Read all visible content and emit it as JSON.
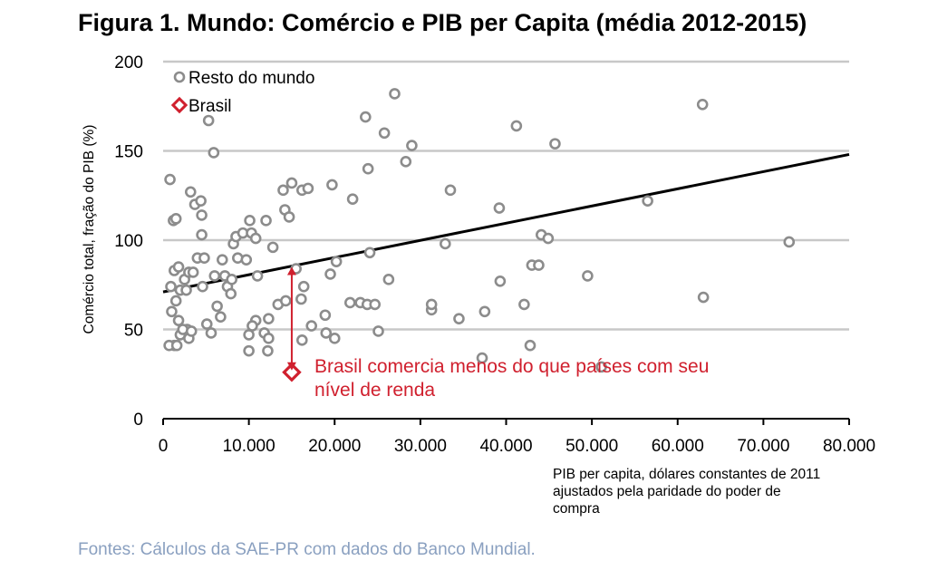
{
  "title": "Figura 1. Mundo: Comércio e PIB per Capita (média 2012-2015)",
  "source": "Fontes: Cálculos da SAE-PR com dados do Banco Mundial.",
  "colors": {
    "world": "#8c8c8c",
    "brasil": "#d0202e",
    "trend": "#000000",
    "grid": "#c8c8c8",
    "source": "#8aa0c0"
  },
  "chart_data": {
    "type": "scatter",
    "ylabel": "Comércio total, fração do PIB (%)",
    "xlabel_lines": [
      "PIB per capita, dólares constantes de 2011",
      "ajustados pela paridade do poder de",
      "compra"
    ],
    "xlim": [
      0,
      80000
    ],
    "ylim": [
      0,
      200
    ],
    "x_ticks": [
      0,
      10000,
      20000,
      30000,
      40000,
      50000,
      60000,
      70000,
      80000
    ],
    "x_tick_labels": [
      "0",
      "10.000",
      "20.000",
      "30.000",
      "40.000",
      "50.000",
      "60.000",
      "70.000",
      "80.000"
    ],
    "y_ticks": [
      0,
      50,
      100,
      150,
      200
    ],
    "y_tick_labels": [
      "0",
      "50",
      "100",
      "150",
      "200"
    ],
    "grid": "horizontal",
    "legend_position": "top-left",
    "series": [
      {
        "name": "Resto do mundo",
        "marker": "circle",
        "points": [
          [
            800,
            134
          ],
          [
            1200,
            111
          ],
          [
            1500,
            112
          ],
          [
            900,
            74
          ],
          [
            1300,
            83
          ],
          [
            1800,
            85
          ],
          [
            2000,
            72
          ],
          [
            1500,
            66
          ],
          [
            2500,
            78
          ],
          [
            1000,
            60
          ],
          [
            1800,
            55
          ],
          [
            2000,
            47
          ],
          [
            1300,
            41
          ],
          [
            700,
            41
          ],
          [
            2800,
            50
          ],
          [
            2300,
            50
          ],
          [
            3000,
            45
          ],
          [
            3300,
            49
          ],
          [
            1600,
            41
          ],
          [
            2700,
            72
          ],
          [
            3000,
            82
          ],
          [
            3500,
            82
          ],
          [
            4000,
            90
          ],
          [
            3200,
            127
          ],
          [
            3700,
            120
          ],
          [
            4400,
            122
          ],
          [
            4500,
            114
          ],
          [
            4500,
            103
          ],
          [
            4800,
            90
          ],
          [
            4600,
            74
          ],
          [
            5300,
            167
          ],
          [
            5900,
            149
          ],
          [
            5100,
            53
          ],
          [
            5600,
            48
          ],
          [
            6000,
            80
          ],
          [
            6300,
            63
          ],
          [
            6700,
            57
          ],
          [
            6900,
            89
          ],
          [
            7200,
            80
          ],
          [
            7500,
            74
          ],
          [
            7900,
            70
          ],
          [
            8000,
            78
          ],
          [
            8200,
            98
          ],
          [
            8500,
            102
          ],
          [
            8700,
            90
          ],
          [
            9300,
            104
          ],
          [
            9700,
            89
          ],
          [
            10100,
            111
          ],
          [
            10300,
            104
          ],
          [
            10800,
            101
          ],
          [
            11000,
            80
          ],
          [
            10800,
            55
          ],
          [
            10400,
            52
          ],
          [
            10000,
            47
          ],
          [
            10000,
            38
          ],
          [
            11800,
            48
          ],
          [
            12000,
            111
          ],
          [
            12300,
            56
          ],
          [
            12300,
            45
          ],
          [
            12200,
            38
          ],
          [
            12800,
            96
          ],
          [
            13400,
            64
          ],
          [
            14000,
            128
          ],
          [
            14200,
            117
          ],
          [
            14700,
            113
          ],
          [
            15000,
            132
          ],
          [
            15500,
            84
          ],
          [
            14300,
            66
          ],
          [
            16200,
            128
          ],
          [
            16400,
            74
          ],
          [
            16100,
            67
          ],
          [
            16900,
            129
          ],
          [
            17300,
            52
          ],
          [
            16200,
            44
          ],
          [
            18900,
            58
          ],
          [
            19000,
            48
          ],
          [
            19500,
            81
          ],
          [
            19700,
            131
          ],
          [
            20200,
            88
          ],
          [
            20000,
            45
          ],
          [
            21800,
            65
          ],
          [
            22100,
            123
          ],
          [
            23000,
            65
          ],
          [
            23600,
            169
          ],
          [
            23900,
            140
          ],
          [
            24100,
            93
          ],
          [
            23800,
            64
          ],
          [
            24700,
            64
          ],
          [
            25100,
            49
          ],
          [
            25800,
            160
          ],
          [
            26300,
            78
          ],
          [
            27000,
            182
          ],
          [
            28300,
            144
          ],
          [
            29000,
            153
          ],
          [
            31300,
            61
          ],
          [
            31300,
            64
          ],
          [
            32900,
            98
          ],
          [
            33500,
            128
          ],
          [
            34500,
            56
          ],
          [
            37500,
            60
          ],
          [
            37200,
            34
          ],
          [
            39200,
            118
          ],
          [
            39300,
            77
          ],
          [
            41200,
            164
          ],
          [
            42100,
            64
          ],
          [
            43000,
            86
          ],
          [
            42800,
            41
          ],
          [
            43800,
            86
          ],
          [
            44100,
            103
          ],
          [
            44900,
            101
          ],
          [
            45700,
            154
          ],
          [
            49500,
            80
          ],
          [
            51100,
            29
          ],
          [
            56500,
            122
          ],
          [
            62900,
            176
          ],
          [
            63000,
            68
          ],
          [
            73000,
            99
          ]
        ]
      },
      {
        "name": "Brasil",
        "marker": "diamond",
        "points": [
          [
            15000,
            26
          ]
        ]
      }
    ],
    "trendline": {
      "x": [
        0,
        80000
      ],
      "y": [
        71,
        148
      ]
    },
    "gap_arrow": {
      "x": 15000,
      "y_from": 27,
      "y_to": 85
    },
    "annotation": {
      "lines": [
        "Brasil comercia menos do que países com seu",
        "nível de renda"
      ],
      "x": 18000,
      "y": 24
    }
  }
}
